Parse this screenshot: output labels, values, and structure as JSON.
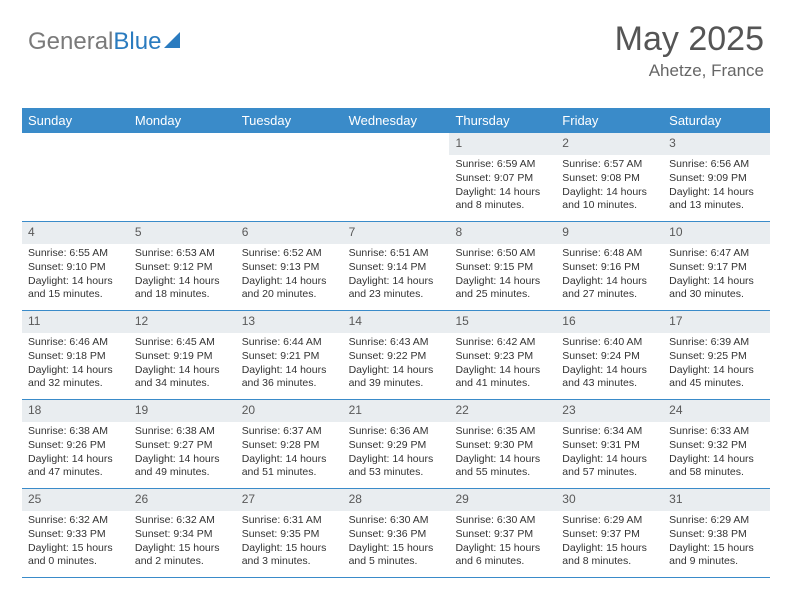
{
  "logo": {
    "part1": "General",
    "part2": "Blue"
  },
  "title": {
    "month": "May 2025",
    "location": "Ahetze, France"
  },
  "colors": {
    "header_bg": "#3a8bc9",
    "header_text": "#ffffff",
    "daynum_bg": "#e9edf0",
    "daynum_text": "#595959",
    "body_text": "#333333",
    "rule": "#3a8bc9",
    "title_text": "#555555",
    "loc_text": "#666666",
    "logo_gray": "#7a7a7a",
    "logo_blue": "#2a7bbf"
  },
  "daynames": [
    "Sunday",
    "Monday",
    "Tuesday",
    "Wednesday",
    "Thursday",
    "Friday",
    "Saturday"
  ],
  "weeks": [
    [
      {
        "day": "",
        "sunrise": "",
        "sunset": "",
        "daylight": ""
      },
      {
        "day": "",
        "sunrise": "",
        "sunset": "",
        "daylight": ""
      },
      {
        "day": "",
        "sunrise": "",
        "sunset": "",
        "daylight": ""
      },
      {
        "day": "",
        "sunrise": "",
        "sunset": "",
        "daylight": ""
      },
      {
        "day": "1",
        "sunrise": "Sunrise: 6:59 AM",
        "sunset": "Sunset: 9:07 PM",
        "daylight": "Daylight: 14 hours and 8 minutes."
      },
      {
        "day": "2",
        "sunrise": "Sunrise: 6:57 AM",
        "sunset": "Sunset: 9:08 PM",
        "daylight": "Daylight: 14 hours and 10 minutes."
      },
      {
        "day": "3",
        "sunrise": "Sunrise: 6:56 AM",
        "sunset": "Sunset: 9:09 PM",
        "daylight": "Daylight: 14 hours and 13 minutes."
      }
    ],
    [
      {
        "day": "4",
        "sunrise": "Sunrise: 6:55 AM",
        "sunset": "Sunset: 9:10 PM",
        "daylight": "Daylight: 14 hours and 15 minutes."
      },
      {
        "day": "5",
        "sunrise": "Sunrise: 6:53 AM",
        "sunset": "Sunset: 9:12 PM",
        "daylight": "Daylight: 14 hours and 18 minutes."
      },
      {
        "day": "6",
        "sunrise": "Sunrise: 6:52 AM",
        "sunset": "Sunset: 9:13 PM",
        "daylight": "Daylight: 14 hours and 20 minutes."
      },
      {
        "day": "7",
        "sunrise": "Sunrise: 6:51 AM",
        "sunset": "Sunset: 9:14 PM",
        "daylight": "Daylight: 14 hours and 23 minutes."
      },
      {
        "day": "8",
        "sunrise": "Sunrise: 6:50 AM",
        "sunset": "Sunset: 9:15 PM",
        "daylight": "Daylight: 14 hours and 25 minutes."
      },
      {
        "day": "9",
        "sunrise": "Sunrise: 6:48 AM",
        "sunset": "Sunset: 9:16 PM",
        "daylight": "Daylight: 14 hours and 27 minutes."
      },
      {
        "day": "10",
        "sunrise": "Sunrise: 6:47 AM",
        "sunset": "Sunset: 9:17 PM",
        "daylight": "Daylight: 14 hours and 30 minutes."
      }
    ],
    [
      {
        "day": "11",
        "sunrise": "Sunrise: 6:46 AM",
        "sunset": "Sunset: 9:18 PM",
        "daylight": "Daylight: 14 hours and 32 minutes."
      },
      {
        "day": "12",
        "sunrise": "Sunrise: 6:45 AM",
        "sunset": "Sunset: 9:19 PM",
        "daylight": "Daylight: 14 hours and 34 minutes."
      },
      {
        "day": "13",
        "sunrise": "Sunrise: 6:44 AM",
        "sunset": "Sunset: 9:21 PM",
        "daylight": "Daylight: 14 hours and 36 minutes."
      },
      {
        "day": "14",
        "sunrise": "Sunrise: 6:43 AM",
        "sunset": "Sunset: 9:22 PM",
        "daylight": "Daylight: 14 hours and 39 minutes."
      },
      {
        "day": "15",
        "sunrise": "Sunrise: 6:42 AM",
        "sunset": "Sunset: 9:23 PM",
        "daylight": "Daylight: 14 hours and 41 minutes."
      },
      {
        "day": "16",
        "sunrise": "Sunrise: 6:40 AM",
        "sunset": "Sunset: 9:24 PM",
        "daylight": "Daylight: 14 hours and 43 minutes."
      },
      {
        "day": "17",
        "sunrise": "Sunrise: 6:39 AM",
        "sunset": "Sunset: 9:25 PM",
        "daylight": "Daylight: 14 hours and 45 minutes."
      }
    ],
    [
      {
        "day": "18",
        "sunrise": "Sunrise: 6:38 AM",
        "sunset": "Sunset: 9:26 PM",
        "daylight": "Daylight: 14 hours and 47 minutes."
      },
      {
        "day": "19",
        "sunrise": "Sunrise: 6:38 AM",
        "sunset": "Sunset: 9:27 PM",
        "daylight": "Daylight: 14 hours and 49 minutes."
      },
      {
        "day": "20",
        "sunrise": "Sunrise: 6:37 AM",
        "sunset": "Sunset: 9:28 PM",
        "daylight": "Daylight: 14 hours and 51 minutes."
      },
      {
        "day": "21",
        "sunrise": "Sunrise: 6:36 AM",
        "sunset": "Sunset: 9:29 PM",
        "daylight": "Daylight: 14 hours and 53 minutes."
      },
      {
        "day": "22",
        "sunrise": "Sunrise: 6:35 AM",
        "sunset": "Sunset: 9:30 PM",
        "daylight": "Daylight: 14 hours and 55 minutes."
      },
      {
        "day": "23",
        "sunrise": "Sunrise: 6:34 AM",
        "sunset": "Sunset: 9:31 PM",
        "daylight": "Daylight: 14 hours and 57 minutes."
      },
      {
        "day": "24",
        "sunrise": "Sunrise: 6:33 AM",
        "sunset": "Sunset: 9:32 PM",
        "daylight": "Daylight: 14 hours and 58 minutes."
      }
    ],
    [
      {
        "day": "25",
        "sunrise": "Sunrise: 6:32 AM",
        "sunset": "Sunset: 9:33 PM",
        "daylight": "Daylight: 15 hours and 0 minutes."
      },
      {
        "day": "26",
        "sunrise": "Sunrise: 6:32 AM",
        "sunset": "Sunset: 9:34 PM",
        "daylight": "Daylight: 15 hours and 2 minutes."
      },
      {
        "day": "27",
        "sunrise": "Sunrise: 6:31 AM",
        "sunset": "Sunset: 9:35 PM",
        "daylight": "Daylight: 15 hours and 3 minutes."
      },
      {
        "day": "28",
        "sunrise": "Sunrise: 6:30 AM",
        "sunset": "Sunset: 9:36 PM",
        "daylight": "Daylight: 15 hours and 5 minutes."
      },
      {
        "day": "29",
        "sunrise": "Sunrise: 6:30 AM",
        "sunset": "Sunset: 9:37 PM",
        "daylight": "Daylight: 15 hours and 6 minutes."
      },
      {
        "day": "30",
        "sunrise": "Sunrise: 6:29 AM",
        "sunset": "Sunset: 9:37 PM",
        "daylight": "Daylight: 15 hours and 8 minutes."
      },
      {
        "day": "31",
        "sunrise": "Sunrise: 6:29 AM",
        "sunset": "Sunset: 9:38 PM",
        "daylight": "Daylight: 15 hours and 9 minutes."
      }
    ]
  ]
}
